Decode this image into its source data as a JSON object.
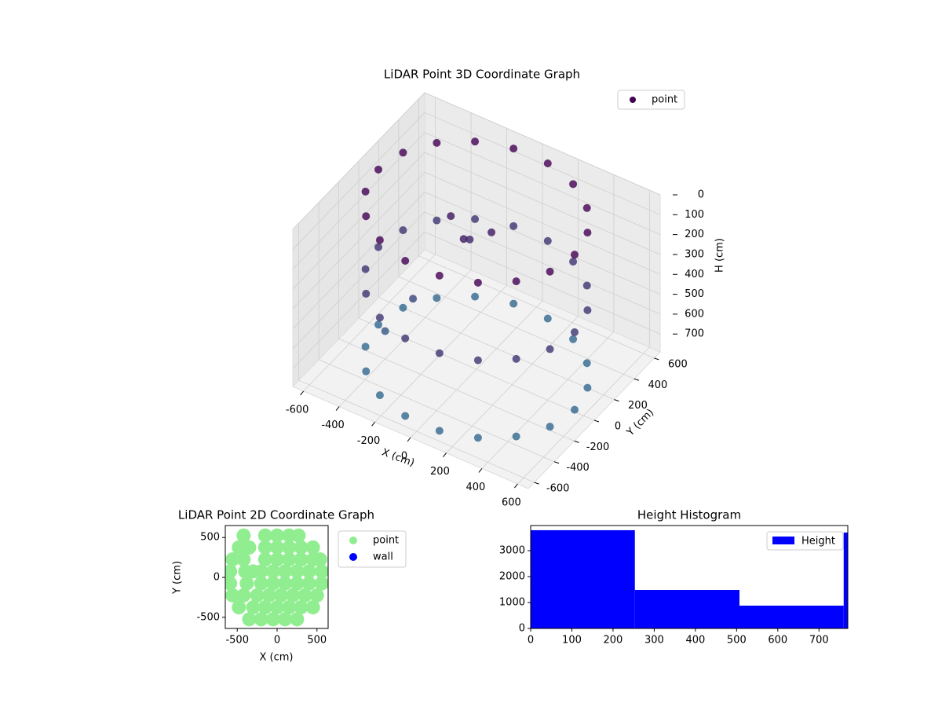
{
  "chart_data": [
    {
      "type": "scatter3d",
      "title": "LiDAR Point 3D Coordinate Graph",
      "x_label": "X (cm)",
      "y_label": "Y (cm)",
      "z_label": "H (cm)",
      "xlim": [
        -660,
        660
      ],
      "ylim": [
        -660,
        660
      ],
      "zlim": [
        0,
        790
      ],
      "z_inverted": true,
      "xticks": [
        -600,
        -400,
        -200,
        0,
        200,
        400,
        600
      ],
      "yticks": [
        -600,
        -400,
        -200,
        0,
        200,
        400,
        600
      ],
      "zticks": [
        0,
        100,
        200,
        300,
        400,
        500,
        600,
        700
      ],
      "legend": "upper right",
      "colormap": [
        "#440154",
        "#31688e"
      ],
      "series": [
        {
          "name": "point",
          "color": "#440154",
          "x": [
            550,
            550,
            550,
            517,
            517,
            517,
            421,
            421,
            421,
            275,
            275,
            275,
            96,
            96,
            96,
            -96,
            -96,
            -96,
            -275,
            -275,
            -275,
            -421,
            -421,
            -421,
            -517,
            -517,
            -517,
            -550,
            -550,
            -550,
            -517,
            -517,
            -517,
            -421,
            -421,
            -421,
            -275,
            -275,
            -275,
            -96,
            -96,
            -96,
            96,
            96,
            96,
            275,
            275,
            275,
            421,
            421,
            421,
            517,
            517,
            517,
            -200,
            -100,
            0,
            -300,
            -400,
            -150
          ],
          "y": [
            0,
            0,
            0,
            188,
            188,
            188,
            354,
            354,
            354,
            476,
            476,
            476,
            542,
            542,
            542,
            542,
            542,
            542,
            476,
            476,
            476,
            354,
            354,
            354,
            188,
            188,
            188,
            0,
            0,
            0,
            -188,
            -188,
            -188,
            -354,
            -354,
            -354,
            -476,
            -476,
            -476,
            -542,
            -542,
            -542,
            -542,
            -542,
            -542,
            -476,
            -476,
            -476,
            -354,
            -354,
            -354,
            -188,
            -188,
            -188,
            100,
            50,
            150,
            -100,
            -200,
            200
          ],
          "z": [
            0,
            390,
            780,
            0,
            390,
            780,
            0,
            390,
            780,
            0,
            390,
            780,
            0,
            390,
            780,
            0,
            390,
            780,
            0,
            390,
            780,
            0,
            390,
            780,
            0,
            390,
            780,
            0,
            390,
            780,
            0,
            390,
            780,
            0,
            390,
            780,
            0,
            390,
            780,
            0,
            390,
            780,
            0,
            390,
            780,
            0,
            390,
            780,
            0,
            390,
            780,
            0,
            390,
            780,
            150,
            200,
            180,
            500,
            650,
            300
          ]
        }
      ]
    },
    {
      "type": "scatter",
      "title": "LiDAR Point 2D Coordinate Graph",
      "x_label": "X (cm)",
      "y_label": "Y (cm)",
      "xlim": [
        -650,
        640
      ],
      "ylim": [
        -640,
        650
      ],
      "xticks": [
        -500,
        0,
        500
      ],
      "yticks": [
        -500,
        0,
        500
      ],
      "legend": "outside right",
      "series": [
        {
          "name": "point",
          "color": "#90ee90",
          "x": [
            -420,
            -150,
            0,
            150,
            270,
            -480,
            -350,
            -150,
            0,
            150,
            300,
            450,
            -560,
            -420,
            -150,
            0,
            150,
            300,
            450,
            540,
            -590,
            -400,
            -300,
            -200,
            -50,
            100,
            250,
            400,
            560,
            -590,
            -380,
            -200,
            -50,
            100,
            250,
            400,
            560,
            -560,
            -420,
            -250,
            -100,
            50,
            200,
            350,
            500,
            -480,
            -300,
            -150,
            0,
            150,
            300,
            450,
            -350,
            -200,
            -50,
            100,
            250
          ],
          "y": [
            525,
            525,
            525,
            525,
            525,
            375,
            375,
            375,
            375,
            375,
            375,
            375,
            225,
            225,
            225,
            225,
            225,
            225,
            225,
            225,
            75,
            75,
            75,
            75,
            75,
            75,
            75,
            75,
            75,
            -75,
            -75,
            -75,
            -75,
            -75,
            -75,
            -75,
            -75,
            -225,
            -225,
            -225,
            -225,
            -225,
            -225,
            -225,
            -225,
            -375,
            -375,
            -375,
            -375,
            -375,
            -375,
            -375,
            -525,
            -525,
            -525,
            -525,
            -525
          ]
        },
        {
          "name": "wall",
          "color": "#0000ff",
          "x": [],
          "y": []
        }
      ]
    },
    {
      "type": "histogram",
      "title": "Height Histogram",
      "name": "Height",
      "color": "#0000ff",
      "bins": [
        0,
        253,
        507,
        760,
        770
      ],
      "counts": [
        3790,
        1485,
        880,
        3700
      ],
      "xlim": [
        0,
        770
      ],
      "ylim": [
        0,
        3970
      ],
      "xticks": [
        0,
        100,
        200,
        300,
        400,
        500,
        600,
        700
      ],
      "yticks": [
        0,
        1000,
        2000,
        3000
      ],
      "legend": "upper right"
    }
  ]
}
